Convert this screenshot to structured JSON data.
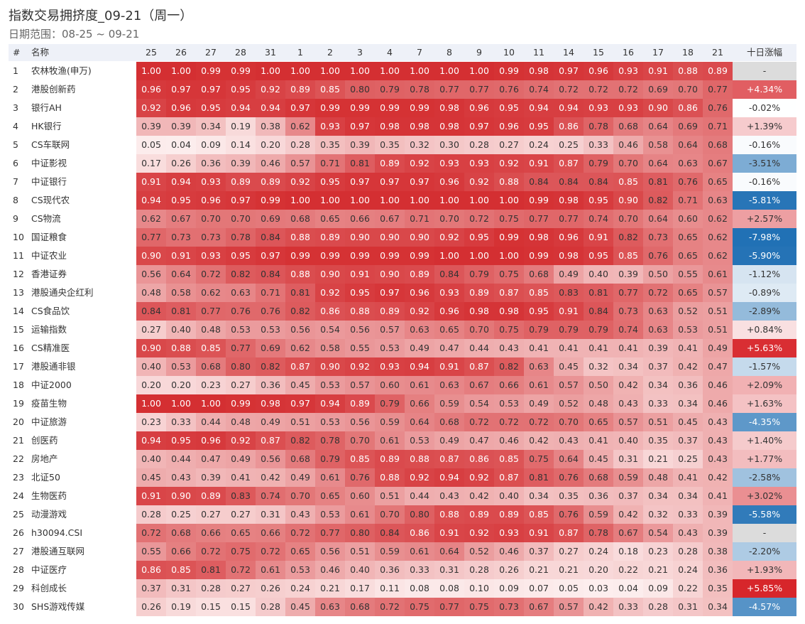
{
  "header": {
    "title": "指数交易拥挤度_09-21（周一）",
    "subtitle": "日期范围：08-25 ~ 09-21"
  },
  "table": {
    "columns": [
      "#",
      "名称",
      "25",
      "26",
      "27",
      "28",
      "31",
      "1",
      "2",
      "3",
      "4",
      "7",
      "8",
      "9",
      "10",
      "11",
      "14",
      "15",
      "16",
      "17",
      "18",
      "21",
      "十日涨幅"
    ],
    "rows": [
      [
        "1",
        "农林牧渔(申万)",
        "1.00",
        "1.00",
        "0.99",
        "0.99",
        "1.00",
        "1.00",
        "1.00",
        "1.00",
        "1.00",
        "1.00",
        "1.00",
        "1.00",
        "0.99",
        "0.98",
        "0.97",
        "0.96",
        "0.93",
        "0.91",
        "0.88",
        "0.89",
        "-"
      ],
      [
        "2",
        "港股创新药",
        "0.96",
        "0.97",
        "0.97",
        "0.95",
        "0.92",
        "0.89",
        "0.85",
        "0.80",
        "0.79",
        "0.78",
        "0.77",
        "0.77",
        "0.76",
        "0.74",
        "0.72",
        "0.72",
        "0.72",
        "0.69",
        "0.70",
        "0.77",
        "+4.34%"
      ],
      [
        "3",
        "银行AH",
        "0.92",
        "0.96",
        "0.95",
        "0.94",
        "0.94",
        "0.97",
        "0.99",
        "0.99",
        "0.99",
        "0.99",
        "0.98",
        "0.96",
        "0.95",
        "0.94",
        "0.94",
        "0.93",
        "0.93",
        "0.90",
        "0.86",
        "0.76",
        "-0.02%"
      ],
      [
        "4",
        "HK银行",
        "0.39",
        "0.39",
        "0.34",
        "0.19",
        "0.38",
        "0.62",
        "0.93",
        "0.97",
        "0.98",
        "0.98",
        "0.98",
        "0.97",
        "0.96",
        "0.95",
        "0.86",
        "0.78",
        "0.68",
        "0.64",
        "0.69",
        "0.71",
        "+1.39%"
      ],
      [
        "5",
        "CS车联网",
        "0.05",
        "0.04",
        "0.09",
        "0.14",
        "0.20",
        "0.28",
        "0.35",
        "0.39",
        "0.35",
        "0.32",
        "0.30",
        "0.28",
        "0.27",
        "0.24",
        "0.25",
        "0.33",
        "0.46",
        "0.58",
        "0.64",
        "0.68",
        "-0.16%"
      ],
      [
        "6",
        "中证影视",
        "0.17",
        "0.26",
        "0.36",
        "0.39",
        "0.46",
        "0.57",
        "0.71",
        "0.81",
        "0.89",
        "0.92",
        "0.93",
        "0.93",
        "0.92",
        "0.91",
        "0.87",
        "0.79",
        "0.70",
        "0.64",
        "0.63",
        "0.67",
        "-3.51%"
      ],
      [
        "7",
        "中证银行",
        "0.91",
        "0.94",
        "0.93",
        "0.89",
        "0.89",
        "0.92",
        "0.95",
        "0.97",
        "0.97",
        "0.97",
        "0.96",
        "0.92",
        "0.88",
        "0.84",
        "0.84",
        "0.84",
        "0.85",
        "0.81",
        "0.76",
        "0.65",
        "-0.16%"
      ],
      [
        "8",
        "CS现代农",
        "0.94",
        "0.95",
        "0.96",
        "0.97",
        "0.99",
        "1.00",
        "1.00",
        "1.00",
        "1.00",
        "1.00",
        "1.00",
        "1.00",
        "1.00",
        "0.99",
        "0.98",
        "0.95",
        "0.90",
        "0.82",
        "0.71",
        "0.63",
        "-5.81%"
      ],
      [
        "9",
        "CS物流",
        "0.62",
        "0.67",
        "0.70",
        "0.70",
        "0.69",
        "0.68",
        "0.65",
        "0.66",
        "0.67",
        "0.71",
        "0.70",
        "0.72",
        "0.75",
        "0.77",
        "0.77",
        "0.74",
        "0.70",
        "0.64",
        "0.60",
        "0.62",
        "+2.57%"
      ],
      [
        "10",
        "国证粮食",
        "0.77",
        "0.73",
        "0.73",
        "0.78",
        "0.84",
        "0.88",
        "0.89",
        "0.90",
        "0.90",
        "0.90",
        "0.92",
        "0.95",
        "0.99",
        "0.98",
        "0.96",
        "0.91",
        "0.82",
        "0.73",
        "0.65",
        "0.62",
        "-7.98%"
      ],
      [
        "11",
        "中证农业",
        "0.90",
        "0.91",
        "0.93",
        "0.95",
        "0.97",
        "0.99",
        "0.99",
        "0.99",
        "0.99",
        "0.99",
        "1.00",
        "1.00",
        "1.00",
        "0.99",
        "0.98",
        "0.95",
        "0.85",
        "0.76",
        "0.65",
        "0.62",
        "-5.90%"
      ],
      [
        "12",
        "香港证券",
        "0.56",
        "0.64",
        "0.72",
        "0.82",
        "0.84",
        "0.88",
        "0.90",
        "0.91",
        "0.90",
        "0.89",
        "0.84",
        "0.79",
        "0.75",
        "0.68",
        "0.49",
        "0.40",
        "0.39",
        "0.50",
        "0.55",
        "0.61",
        "-1.12%"
      ],
      [
        "13",
        "港股通央企红利",
        "0.48",
        "0.58",
        "0.62",
        "0.63",
        "0.71",
        "0.81",
        "0.92",
        "0.95",
        "0.97",
        "0.96",
        "0.93",
        "0.89",
        "0.87",
        "0.85",
        "0.83",
        "0.81",
        "0.77",
        "0.72",
        "0.65",
        "0.57",
        "-0.89%"
      ],
      [
        "14",
        "CS食品饮",
        "0.84",
        "0.81",
        "0.77",
        "0.76",
        "0.76",
        "0.82",
        "0.86",
        "0.88",
        "0.89",
        "0.92",
        "0.96",
        "0.98",
        "0.98",
        "0.95",
        "0.91",
        "0.84",
        "0.73",
        "0.63",
        "0.52",
        "0.51",
        "-2.89%"
      ],
      [
        "15",
        "运输指数",
        "0.27",
        "0.40",
        "0.48",
        "0.53",
        "0.53",
        "0.56",
        "0.54",
        "0.56",
        "0.57",
        "0.63",
        "0.65",
        "0.70",
        "0.75",
        "0.79",
        "0.79",
        "0.79",
        "0.74",
        "0.63",
        "0.53",
        "0.51",
        "+0.84%"
      ],
      [
        "16",
        "CS精准医",
        "0.90",
        "0.88",
        "0.85",
        "0.77",
        "0.69",
        "0.62",
        "0.58",
        "0.55",
        "0.53",
        "0.49",
        "0.47",
        "0.44",
        "0.43",
        "0.41",
        "0.41",
        "0.41",
        "0.41",
        "0.39",
        "0.41",
        "0.49",
        "+5.63%"
      ],
      [
        "17",
        "港股通非银",
        "0.40",
        "0.53",
        "0.68",
        "0.80",
        "0.82",
        "0.87",
        "0.90",
        "0.92",
        "0.93",
        "0.94",
        "0.91",
        "0.87",
        "0.82",
        "0.63",
        "0.45",
        "0.32",
        "0.34",
        "0.37",
        "0.42",
        "0.47",
        "-1.57%"
      ],
      [
        "18",
        "中证2000",
        "0.20",
        "0.20",
        "0.23",
        "0.27",
        "0.36",
        "0.45",
        "0.53",
        "0.57",
        "0.60",
        "0.61",
        "0.63",
        "0.67",
        "0.66",
        "0.61",
        "0.57",
        "0.50",
        "0.42",
        "0.34",
        "0.36",
        "0.46",
        "+2.09%"
      ],
      [
        "19",
        "疫苗生物",
        "1.00",
        "1.00",
        "1.00",
        "0.99",
        "0.98",
        "0.97",
        "0.94",
        "0.89",
        "0.79",
        "0.66",
        "0.59",
        "0.54",
        "0.53",
        "0.49",
        "0.52",
        "0.48",
        "0.43",
        "0.33",
        "0.34",
        "0.46",
        "+1.63%"
      ],
      [
        "20",
        "中证旅游",
        "0.23",
        "0.33",
        "0.44",
        "0.48",
        "0.49",
        "0.51",
        "0.53",
        "0.56",
        "0.59",
        "0.64",
        "0.68",
        "0.72",
        "0.72",
        "0.72",
        "0.70",
        "0.65",
        "0.57",
        "0.51",
        "0.45",
        "0.43",
        "-4.35%"
      ],
      [
        "21",
        "创医药",
        "0.94",
        "0.95",
        "0.96",
        "0.92",
        "0.87",
        "0.82",
        "0.78",
        "0.70",
        "0.61",
        "0.53",
        "0.49",
        "0.47",
        "0.46",
        "0.42",
        "0.43",
        "0.41",
        "0.40",
        "0.35",
        "0.37",
        "0.43",
        "+1.40%"
      ],
      [
        "22",
        "房地产",
        "0.40",
        "0.44",
        "0.47",
        "0.49",
        "0.56",
        "0.68",
        "0.79",
        "0.85",
        "0.89",
        "0.88",
        "0.87",
        "0.86",
        "0.85",
        "0.75",
        "0.64",
        "0.45",
        "0.31",
        "0.21",
        "0.25",
        "0.43",
        "+1.77%"
      ],
      [
        "23",
        "北证50",
        "0.45",
        "0.43",
        "0.39",
        "0.41",
        "0.42",
        "0.49",
        "0.61",
        "0.76",
        "0.88",
        "0.92",
        "0.94",
        "0.92",
        "0.87",
        "0.81",
        "0.76",
        "0.68",
        "0.59",
        "0.48",
        "0.41",
        "0.42",
        "-2.58%"
      ],
      [
        "24",
        "生物医药",
        "0.91",
        "0.90",
        "0.89",
        "0.83",
        "0.74",
        "0.70",
        "0.65",
        "0.60",
        "0.51",
        "0.44",
        "0.43",
        "0.42",
        "0.40",
        "0.34",
        "0.35",
        "0.36",
        "0.37",
        "0.34",
        "0.34",
        "0.41",
        "+3.02%"
      ],
      [
        "25",
        "动漫游戏",
        "0.28",
        "0.25",
        "0.27",
        "0.27",
        "0.31",
        "0.43",
        "0.53",
        "0.61",
        "0.70",
        "0.80",
        "0.88",
        "0.89",
        "0.89",
        "0.85",
        "0.76",
        "0.59",
        "0.42",
        "0.32",
        "0.33",
        "0.39",
        "-5.58%"
      ],
      [
        "26",
        "h30094.CSI",
        "0.72",
        "0.68",
        "0.66",
        "0.65",
        "0.66",
        "0.72",
        "0.77",
        "0.80",
        "0.84",
        "0.86",
        "0.91",
        "0.92",
        "0.93",
        "0.91",
        "0.87",
        "0.78",
        "0.67",
        "0.54",
        "0.43",
        "0.39",
        "-"
      ],
      [
        "27",
        "港股通互联网",
        "0.55",
        "0.66",
        "0.72",
        "0.75",
        "0.72",
        "0.65",
        "0.56",
        "0.51",
        "0.59",
        "0.61",
        "0.64",
        "0.52",
        "0.46",
        "0.37",
        "0.27",
        "0.24",
        "0.18",
        "0.23",
        "0.28",
        "0.38",
        "-2.20%"
      ],
      [
        "28",
        "中证医疗",
        "0.86",
        "0.85",
        "0.81",
        "0.72",
        "0.61",
        "0.53",
        "0.46",
        "0.40",
        "0.36",
        "0.33",
        "0.31",
        "0.28",
        "0.26",
        "0.21",
        "0.21",
        "0.20",
        "0.22",
        "0.21",
        "0.24",
        "0.36",
        "+1.93%"
      ],
      [
        "29",
        "科创成长",
        "0.37",
        "0.31",
        "0.28",
        "0.27",
        "0.26",
        "0.24",
        "0.21",
        "0.17",
        "0.11",
        "0.08",
        "0.08",
        "0.10",
        "0.09",
        "0.07",
        "0.05",
        "0.03",
        "0.04",
        "0.09",
        "0.22",
        "0.35",
        "+5.85%"
      ],
      [
        "30",
        "SHS游戏传媒",
        "0.26",
        "0.19",
        "0.15",
        "0.15",
        "0.28",
        "0.45",
        "0.63",
        "0.68",
        "0.72",
        "0.75",
        "0.77",
        "0.75",
        "0.73",
        "0.67",
        "0.57",
        "0.42",
        "0.33",
        "0.28",
        "0.31",
        "0.34",
        "-4.57%"
      ]
    ]
  }
}
